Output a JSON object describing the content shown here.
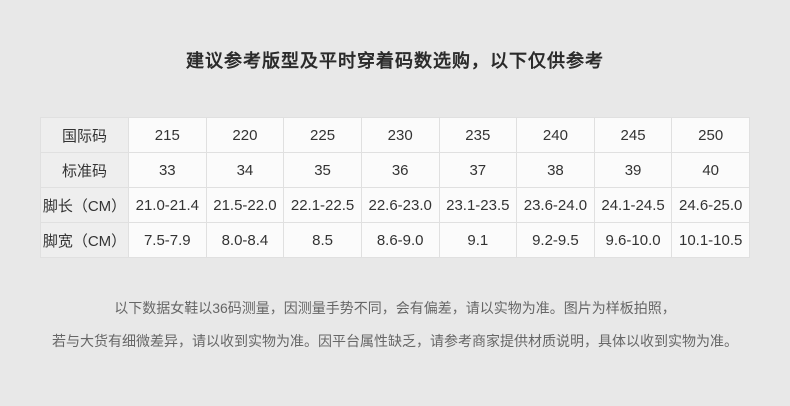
{
  "page": {
    "title": "建议参考版型及平时穿着码数选购，以下仅供参考",
    "background_color": "#e8e8e8"
  },
  "size_table": {
    "colors": {
      "label_cell_bg": "#eeeeee",
      "data_cell_bg": "#fbfbfb",
      "border": "#e0e0e0",
      "text": "#333333"
    },
    "rows": [
      {
        "label": "国际码",
        "values": [
          "215",
          "220",
          "225",
          "230",
          "235",
          "240",
          "245",
          "250"
        ]
      },
      {
        "label": "标准码",
        "values": [
          "33",
          "34",
          "35",
          "36",
          "37",
          "38",
          "39",
          "40"
        ]
      },
      {
        "label": "脚长（CM）",
        "values": [
          "21.0-21.4",
          "21.5-22.0",
          "22.1-22.5",
          "22.6-23.0",
          "23.1-23.5",
          "23.6-24.0",
          "24.1-24.5",
          "24.6-25.0"
        ]
      },
      {
        "label": "脚宽（CM）",
        "values": [
          "7.5-7.9",
          "8.0-8.4",
          "8.5",
          "8.6-9.0",
          "9.1",
          "9.2-9.5",
          "9.6-10.0",
          "10.1-10.5"
        ]
      }
    ]
  },
  "disclaimer": {
    "line1": "以下数据女鞋以36码测量，因测量手势不同，会有偏差，请以实物为准。图片为样板拍照，",
    "line2": "若与大货有细微差异，请以收到实物为准。因平台属性缺乏，请参考商家提供材质说明，具体以收到实物为准。"
  }
}
